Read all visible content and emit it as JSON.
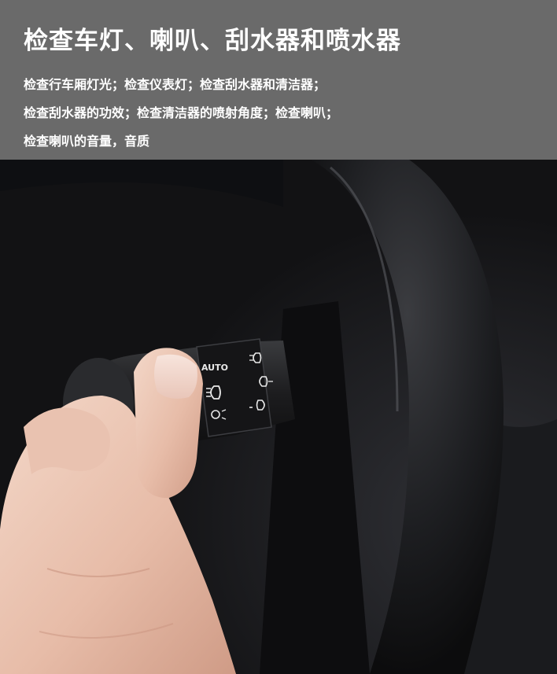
{
  "header": {
    "title": "检查车灯、喇叭、刮水器和喷水器",
    "lines": [
      "检查行车厢灯光；检查仪表灯；检查刮水器和清洁器；",
      "检查刮水器的功效；检查清洁器的喷射角度；检查喇叭；",
      "检查喇叭的音量，音质"
    ]
  },
  "photo": {
    "stalk_label": "AUTO",
    "icons": [
      "headlight-icon",
      "parking-light-icon",
      "fog-light-icon",
      "front-fog-icon",
      "rear-fog-icon"
    ]
  },
  "colors": {
    "header_bg": "#6a6a6a",
    "header_text": "#ffffff"
  }
}
